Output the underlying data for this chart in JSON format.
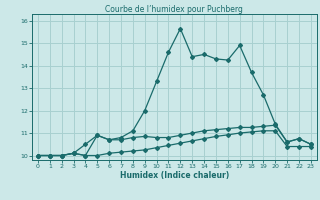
{
  "title": "Courbe de l’humidex pour Puchberg",
  "xlabel": "Humidex (Indice chaleur)",
  "ylabel": "",
  "bg_color": "#cce8e8",
  "line_color": "#1a6b6b",
  "grid_color": "#a8d0d0",
  "xlim": [
    -0.5,
    23.5
  ],
  "ylim": [
    9.8,
    16.3
  ],
  "xticks": [
    0,
    1,
    2,
    3,
    4,
    5,
    6,
    7,
    8,
    9,
    10,
    11,
    12,
    13,
    14,
    15,
    16,
    17,
    18,
    19,
    20,
    21,
    22,
    23
  ],
  "yticks": [
    10,
    11,
    12,
    13,
    14,
    15,
    16
  ],
  "line1_x": [
    0,
    1,
    2,
    3,
    4,
    5,
    6,
    7,
    8,
    9,
    10,
    11,
    12,
    13,
    14,
    15,
    16,
    17,
    18,
    19,
    20,
    21,
    22,
    23
  ],
  "line1_y": [
    10.0,
    10.0,
    10.0,
    10.1,
    10.0,
    10.0,
    10.1,
    10.15,
    10.2,
    10.25,
    10.35,
    10.45,
    10.55,
    10.65,
    10.75,
    10.85,
    10.92,
    11.0,
    11.05,
    11.1,
    11.1,
    10.4,
    10.4,
    10.4
  ],
  "line2_x": [
    0,
    1,
    2,
    3,
    4,
    5,
    6,
    7,
    8,
    9,
    10,
    11,
    12,
    13,
    14,
    15,
    16,
    17,
    18,
    19,
    20,
    21,
    22,
    23
  ],
  "line2_y": [
    10.0,
    10.0,
    10.0,
    10.1,
    10.5,
    10.9,
    10.7,
    10.8,
    11.1,
    12.0,
    13.3,
    14.6,
    15.65,
    14.4,
    14.5,
    14.3,
    14.25,
    14.9,
    13.7,
    12.7,
    11.4,
    10.6,
    10.75,
    10.5
  ],
  "line3_x": [
    0,
    1,
    2,
    3,
    4,
    5,
    6,
    7,
    8,
    9,
    10,
    11,
    12,
    13,
    14,
    15,
    16,
    17,
    18,
    19,
    20,
    21,
    22,
    23
  ],
  "line3_y": [
    10.0,
    10.0,
    10.0,
    10.1,
    10.0,
    10.9,
    10.7,
    10.7,
    10.8,
    10.85,
    10.8,
    10.8,
    10.9,
    11.0,
    11.1,
    11.15,
    11.2,
    11.25,
    11.25,
    11.3,
    11.35,
    10.6,
    10.75,
    10.5
  ],
  "marker": "D",
  "markersize": 2.0,
  "linewidth": 0.9
}
